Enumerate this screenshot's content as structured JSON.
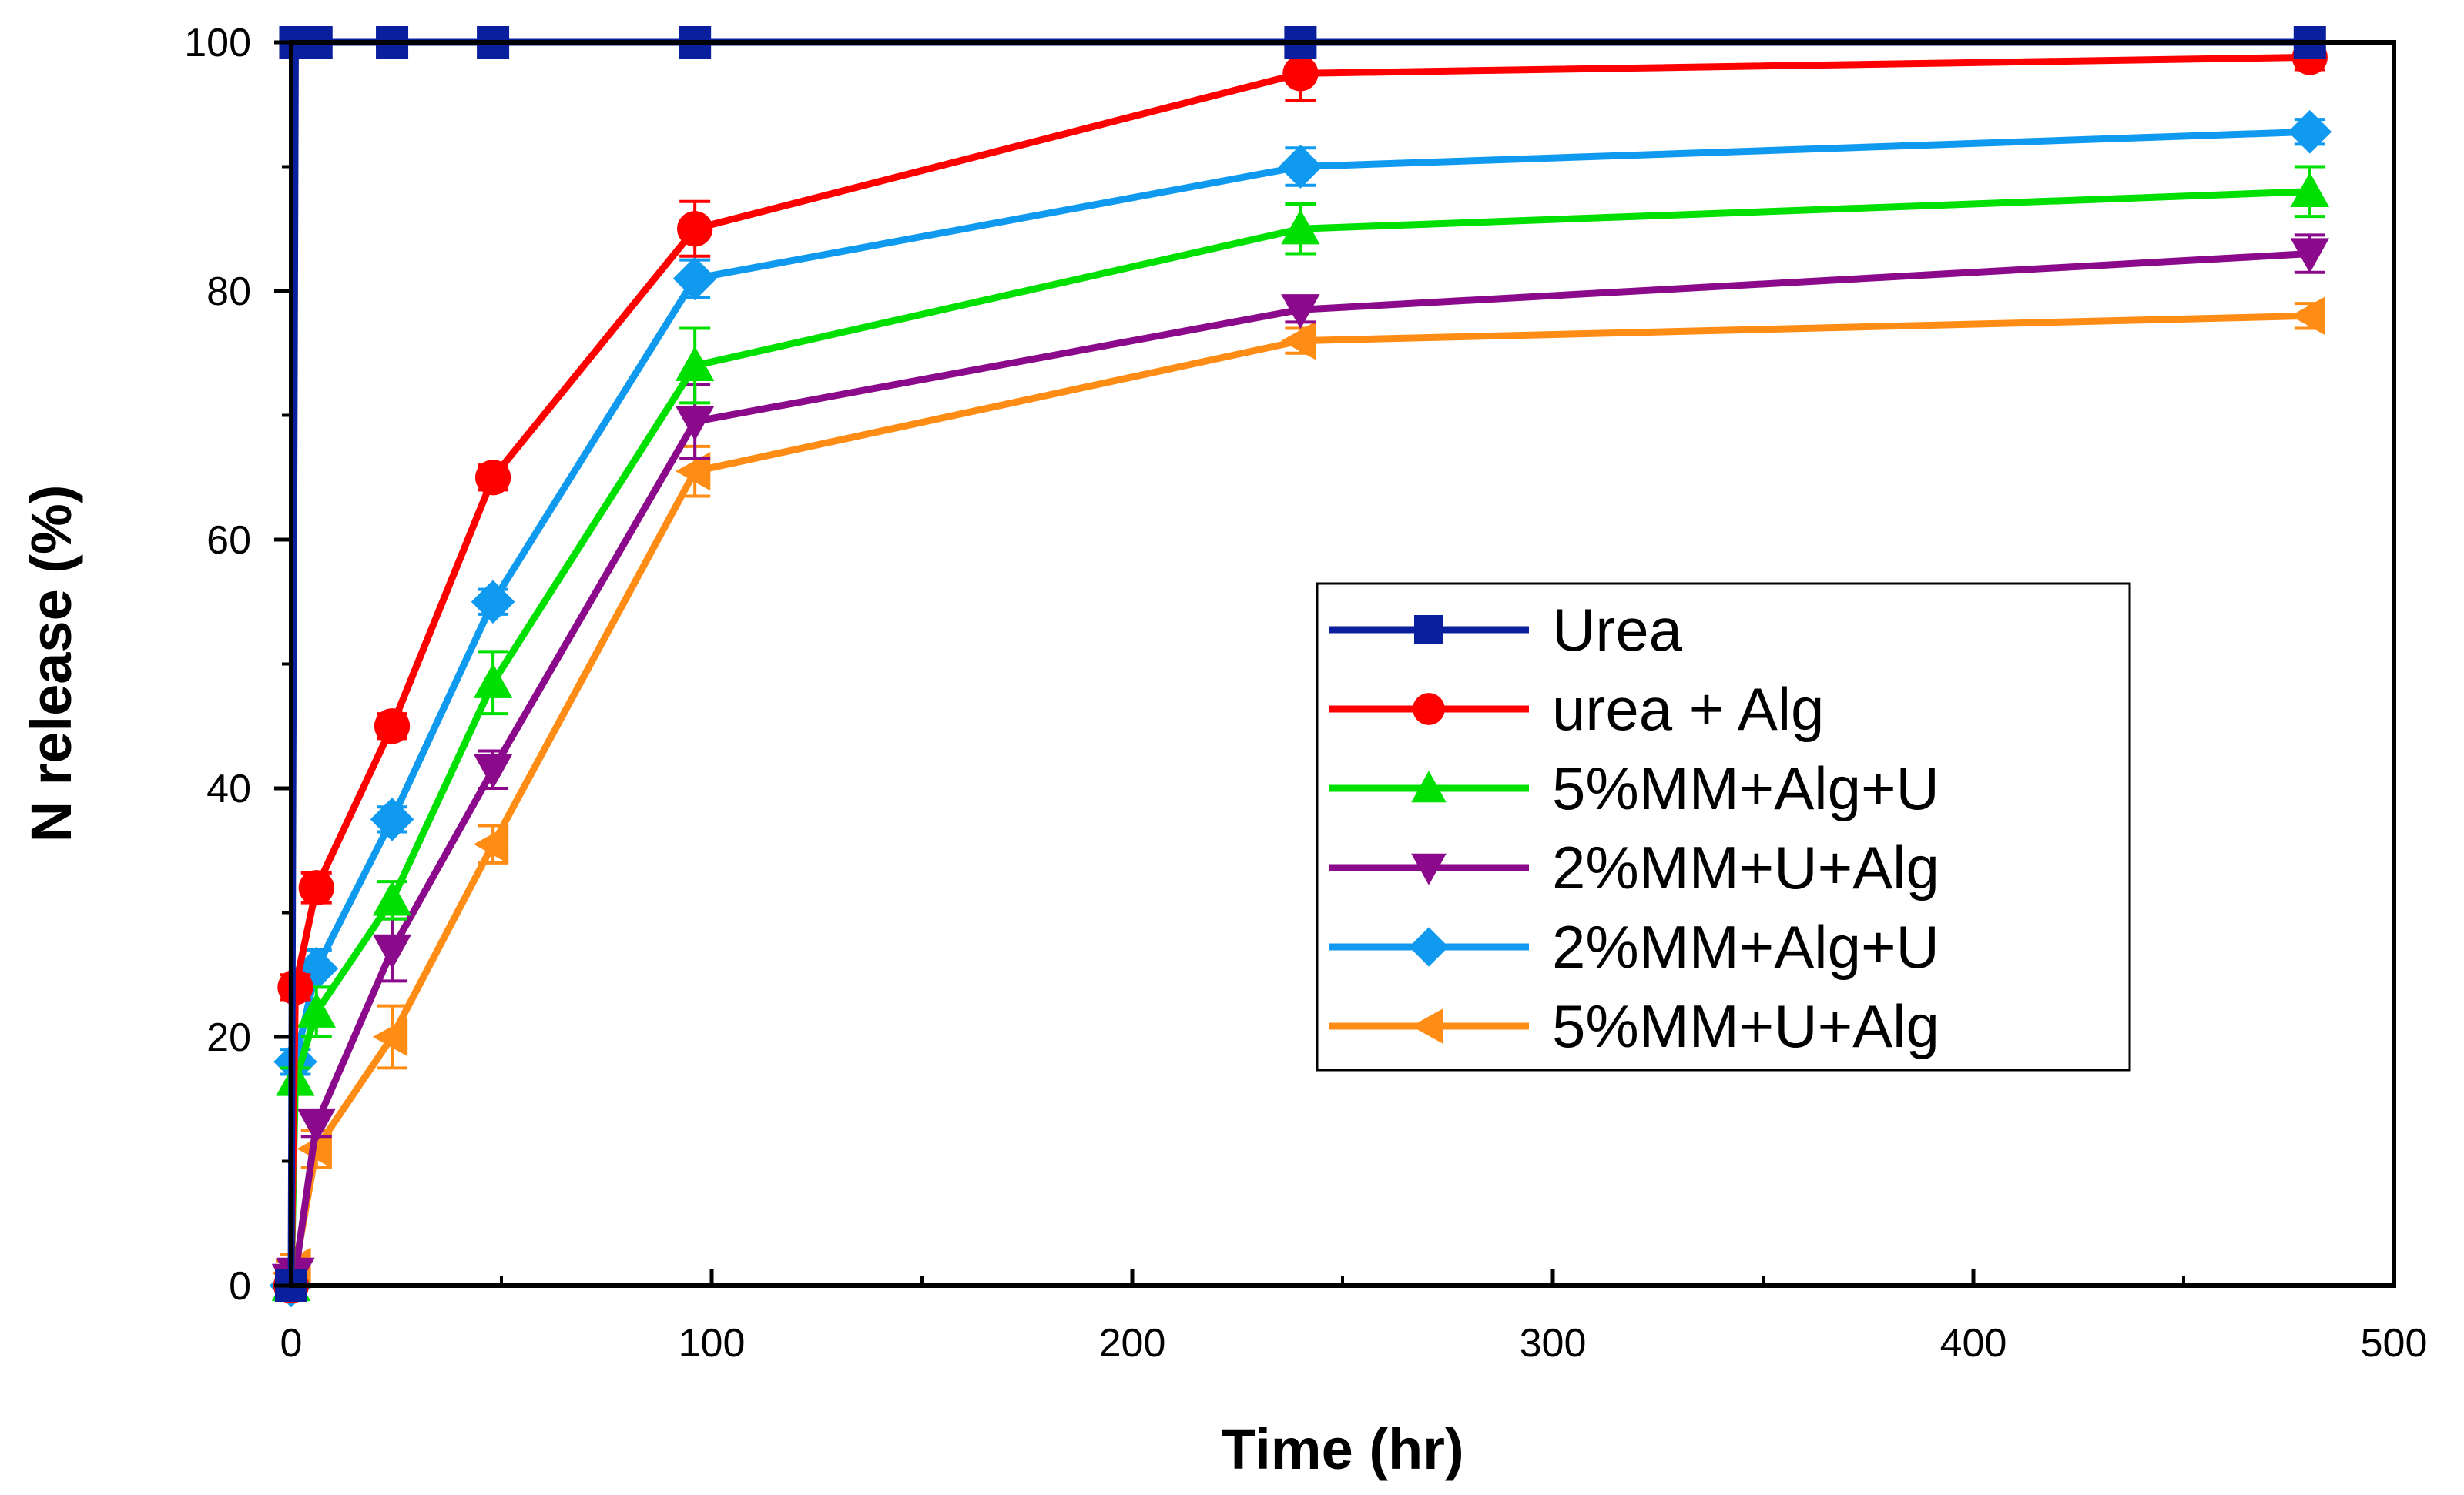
{
  "chart_data": {
    "type": "line",
    "title": "",
    "xlabel": "Time (hr)",
    "ylabel": "N release (%)",
    "xlim": [
      0,
      500
    ],
    "ylim": [
      0,
      100
    ],
    "xticks": [
      0,
      100,
      200,
      300,
      400,
      500
    ],
    "yticks": [
      0,
      20,
      40,
      60,
      80,
      100
    ],
    "x_tick_labels": [
      "0",
      "100",
      "200",
      "300",
      "400",
      "500"
    ],
    "y_tick_labels": [
      "0",
      "20",
      "40",
      "60",
      "80",
      "100"
    ],
    "grid": false,
    "legend_position": "center-right",
    "series": [
      {
        "name": "Urea",
        "color": "#0a1f9e",
        "marker": "square",
        "x": [
          0,
          1,
          3,
          6,
          24,
          48,
          96,
          240,
          480
        ],
        "y": [
          0,
          100,
          100,
          100,
          100,
          100,
          100,
          100,
          100
        ],
        "err": [
          0,
          0,
          0,
          0,
          0,
          0,
          0,
          0,
          0
        ]
      },
      {
        "name": "urea + Alg",
        "color": "#ff0000",
        "marker": "circle",
        "x": [
          0,
          1,
          6,
          24,
          48,
          96,
          240,
          480
        ],
        "y": [
          0,
          24,
          32,
          45,
          65,
          85,
          97.5,
          98.8
        ],
        "err": [
          1,
          1,
          1.2,
          1,
          1,
          2.2,
          2.2,
          1
        ]
      },
      {
        "name": "5%MM+Alg+U",
        "color": "#00e000",
        "marker": "triangle-up",
        "x": [
          0,
          1,
          6,
          24,
          48,
          96,
          240,
          480
        ],
        "y": [
          0,
          16.5,
          22,
          31,
          48.5,
          74,
          85,
          88
        ],
        "err": [
          1,
          1,
          2,
          1.5,
          2.5,
          3,
          2,
          2
        ]
      },
      {
        "name": "2%MM+U+Alg",
        "color": "#8b0a8b",
        "marker": "triangle-down",
        "x": [
          0,
          1,
          6,
          24,
          48,
          96,
          240,
          480
        ],
        "y": [
          0.5,
          1,
          13,
          27,
          41.5,
          69.5,
          78.5,
          83
        ],
        "err": [
          1,
          1,
          1,
          2.5,
          1.5,
          3,
          1,
          1.5
        ]
      },
      {
        "name": "2%MM+Alg+U",
        "color": "#0f9af0",
        "marker": "diamond",
        "x": [
          0,
          1,
          6,
          24,
          48,
          96,
          240,
          480
        ],
        "y": [
          0,
          18,
          25.5,
          37.5,
          55,
          81,
          90,
          92.8
        ],
        "err": [
          1,
          1,
          1.5,
          1,
          1,
          1.5,
          1.5,
          1
        ]
      },
      {
        "name": "5%MM+U+Alg",
        "color": "#ff8c14",
        "marker": "triangle-left",
        "x": [
          0,
          1,
          6,
          24,
          48,
          96,
          240,
          480
        ],
        "y": [
          1,
          1.5,
          11,
          20,
          35.5,
          65.5,
          76,
          78
        ],
        "err": [
          1,
          1,
          1.5,
          2.5,
          1.5,
          2,
          1,
          1
        ]
      }
    ]
  }
}
